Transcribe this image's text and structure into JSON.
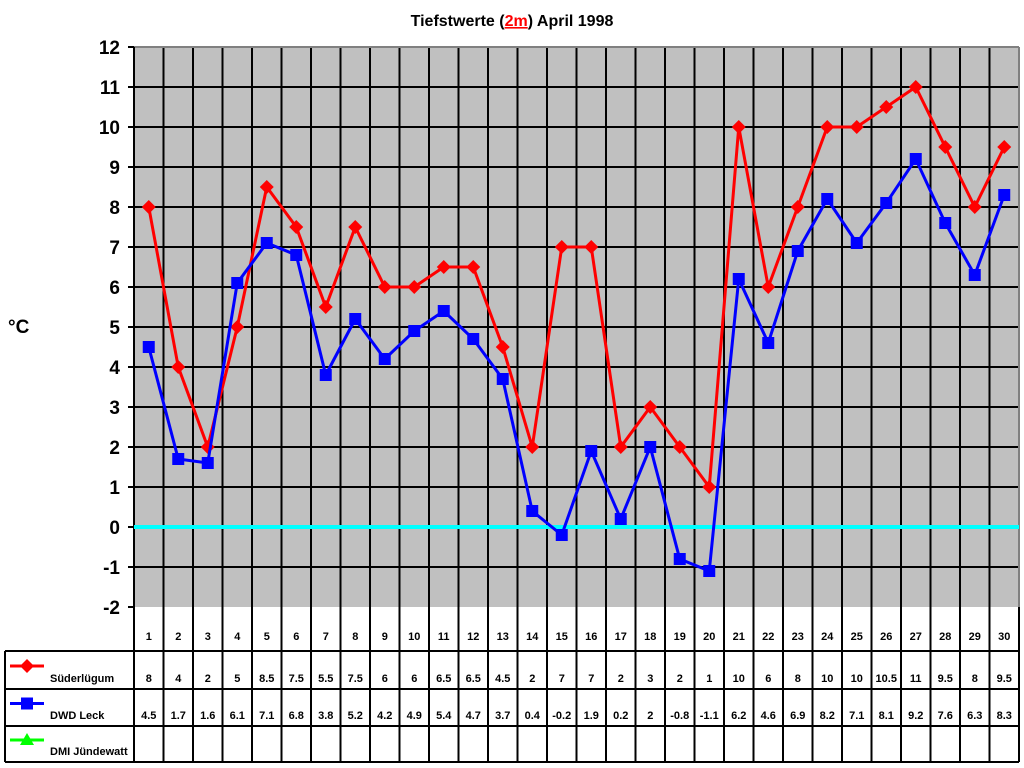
{
  "title": {
    "prefix": "Tiefstwerte (",
    "highlight": "2m",
    "suffix": ") April 1998"
  },
  "colors": {
    "plot_background": "#C0C0C0",
    "grid": "#000000",
    "zero_line": "#00FFFF",
    "highlight_text": "#FF0000"
  },
  "chart_data": {
    "type": "line",
    "title": "Tiefstwerte (2m) April 1998",
    "xlabel": "",
    "ylabel": "°C",
    "ylim": [
      -2,
      12
    ],
    "yticks": [
      12,
      11,
      10,
      9,
      8,
      7,
      6,
      5,
      4,
      3,
      2,
      1,
      0,
      -1,
      -2
    ],
    "grid": true,
    "legend_position": "data-table-left",
    "categories": [
      "1",
      "2",
      "3",
      "4",
      "5",
      "6",
      "7",
      "8",
      "9",
      "10",
      "11",
      "12",
      "13",
      "14",
      "15",
      "16",
      "17",
      "18",
      "19",
      "20",
      "21",
      "22",
      "23",
      "24",
      "25",
      "26",
      "27",
      "28",
      "29",
      "30"
    ],
    "series": [
      {
        "name": "Süderlügum",
        "color": "#FF0000",
        "marker": "diamond",
        "values": [
          8,
          4,
          2,
          5,
          8.5,
          7.5,
          5.5,
          7.5,
          6,
          6,
          6.5,
          6.5,
          4.5,
          2,
          7,
          7,
          2,
          3,
          2,
          1,
          10,
          6,
          8,
          10,
          10,
          10.5,
          11,
          9.5,
          8,
          9.5
        ]
      },
      {
        "name": "DWD Leck",
        "color": "#0000FF",
        "marker": "square",
        "values": [
          4.5,
          1.7,
          1.6,
          6.1,
          7.1,
          6.8,
          3.8,
          5.2,
          4.2,
          4.9,
          5.4,
          4.7,
          3.7,
          0.4,
          -0.2,
          1.9,
          0.2,
          2,
          -0.8,
          -1.1,
          6.2,
          4.6,
          6.9,
          8.2,
          7.1,
          8.1,
          9.2,
          7.6,
          6.3,
          8.3
        ]
      },
      {
        "name": "DMI Jündewatt",
        "color": "#00FF00",
        "marker": "triangle",
        "values": []
      }
    ],
    "reference_lines": [
      {
        "y": 0,
        "color": "#00FFFF"
      }
    ]
  }
}
